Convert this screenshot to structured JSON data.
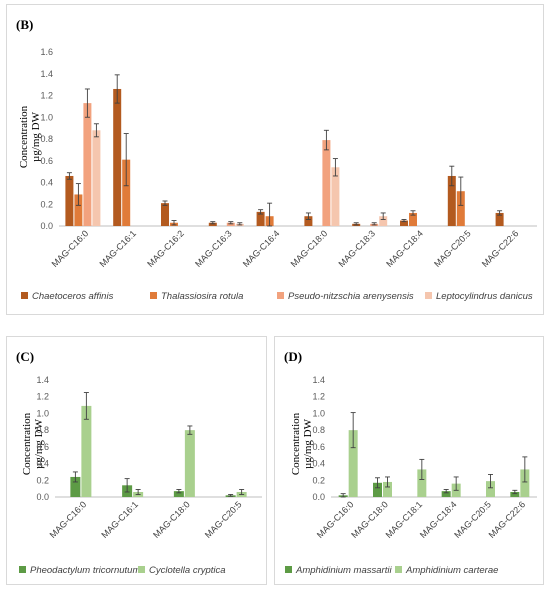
{
  "chart_data": [
    {
      "type": "bar",
      "panel_label": "(B)",
      "ylabel_line1": "Concentration",
      "ylabel_line2": "µg/mg DW",
      "ylim": [
        0,
        1.6
      ],
      "yticks": [
        "0.0",
        "0.2",
        "0.4",
        "0.6",
        "0.8",
        "1.0",
        "1.2",
        "1.4",
        "1.6"
      ],
      "grid": false,
      "legend_position": "bottom",
      "categories": [
        "MAG-C16:0",
        "MAG-C16:1",
        "MAG-C16:2",
        "MAG-C16:3",
        "MAG-C16:4",
        "MAG-C18:0",
        "MAG-C18:3",
        "MAG-C18:4",
        "MAG-C20:5",
        "MAG-C22:6"
      ],
      "series": [
        {
          "name": "Chaetoceros affinis",
          "color": "#b35a1f",
          "values": [
            0.46,
            1.26,
            0.21,
            0.03,
            0.13,
            0.09,
            0.02,
            0.05,
            0.46,
            0.12
          ],
          "errors": [
            0.03,
            0.13,
            0.02,
            0.01,
            0.02,
            0.03,
            0.01,
            0.01,
            0.09,
            0.02
          ]
        },
        {
          "name": "Thalassiosira rotula",
          "color": "#e07b39",
          "values": [
            0.29,
            0.61,
            0.03,
            null,
            0.09,
            null,
            null,
            0.12,
            0.32,
            null
          ],
          "errors": [
            0.1,
            0.24,
            0.02,
            null,
            0.12,
            null,
            null,
            0.02,
            0.13,
            null
          ]
        },
        {
          "name": "Pseudo-nitzschia arenysensis",
          "color": "#f2a27e",
          "values": [
            1.13,
            null,
            null,
            0.03,
            null,
            0.79,
            0.02,
            null,
            null,
            null
          ],
          "errors": [
            0.13,
            null,
            null,
            0.01,
            null,
            0.09,
            0.01,
            null,
            null,
            null
          ]
        },
        {
          "name": "Leptocylindrus danicus",
          "color": "#f5c6ae",
          "values": [
            0.88,
            null,
            null,
            0.02,
            null,
            0.54,
            0.09,
            null,
            null,
            null
          ],
          "errors": [
            0.06,
            null,
            null,
            0.01,
            null,
            0.08,
            0.03,
            null,
            null,
            null
          ]
        }
      ]
    },
    {
      "type": "bar",
      "panel_label": "(C)",
      "ylabel_line1": "Concentration",
      "ylabel_line2": "µg/mg DW",
      "ylim": [
        0,
        1.4
      ],
      "yticks": [
        "0.0",
        "0.2",
        "0.4",
        "0.6",
        "0.8",
        "1.0",
        "1.2",
        "1.4"
      ],
      "grid": false,
      "legend_position": "bottom",
      "categories": [
        "MAG-C16:0",
        "MAG-C16:1",
        "MAG-C18:0",
        "MAG-C20:5"
      ],
      "series": [
        {
          "name": "Pheodactylum tricornutum",
          "color": "#5d9b45",
          "values": [
            0.24,
            0.14,
            0.07,
            0.02
          ],
          "errors": [
            0.06,
            0.08,
            0.02,
            0.01
          ]
        },
        {
          "name": "Cyclotella cryptica",
          "color": "#a9d08e",
          "values": [
            1.09,
            0.06,
            0.8,
            0.06
          ],
          "errors": [
            0.16,
            0.03,
            0.05,
            0.03
          ]
        }
      ]
    },
    {
      "type": "bar",
      "panel_label": "(D)",
      "ylabel_line1": "Concentration",
      "ylabel_line2": "µg/mg DW",
      "ylim": [
        0,
        1.4
      ],
      "yticks": [
        "0.0",
        "0.2",
        "0.4",
        "0.6",
        "0.8",
        "1.0",
        "1.2",
        "1.4"
      ],
      "grid": false,
      "legend_position": "bottom",
      "categories": [
        "MAG-C16:0",
        "MAG-C18:0",
        "MAG-C18:1",
        "MAG-C18:4",
        "MAG-C20:5",
        "MAG-C22:6"
      ],
      "series": [
        {
          "name": "Amphidinium massartii",
          "color": "#5d9b45",
          "values": [
            0.02,
            0.17,
            null,
            0.07,
            null,
            0.06
          ],
          "errors": [
            0.02,
            0.06,
            null,
            0.02,
            null,
            0.02
          ]
        },
        {
          "name": "Amphidinium carterae",
          "color": "#a9d08e",
          "values": [
            0.8,
            0.18,
            0.33,
            0.16,
            0.19,
            0.33
          ],
          "errors": [
            0.21,
            0.06,
            0.12,
            0.08,
            0.08,
            0.15
          ]
        }
      ]
    }
  ]
}
